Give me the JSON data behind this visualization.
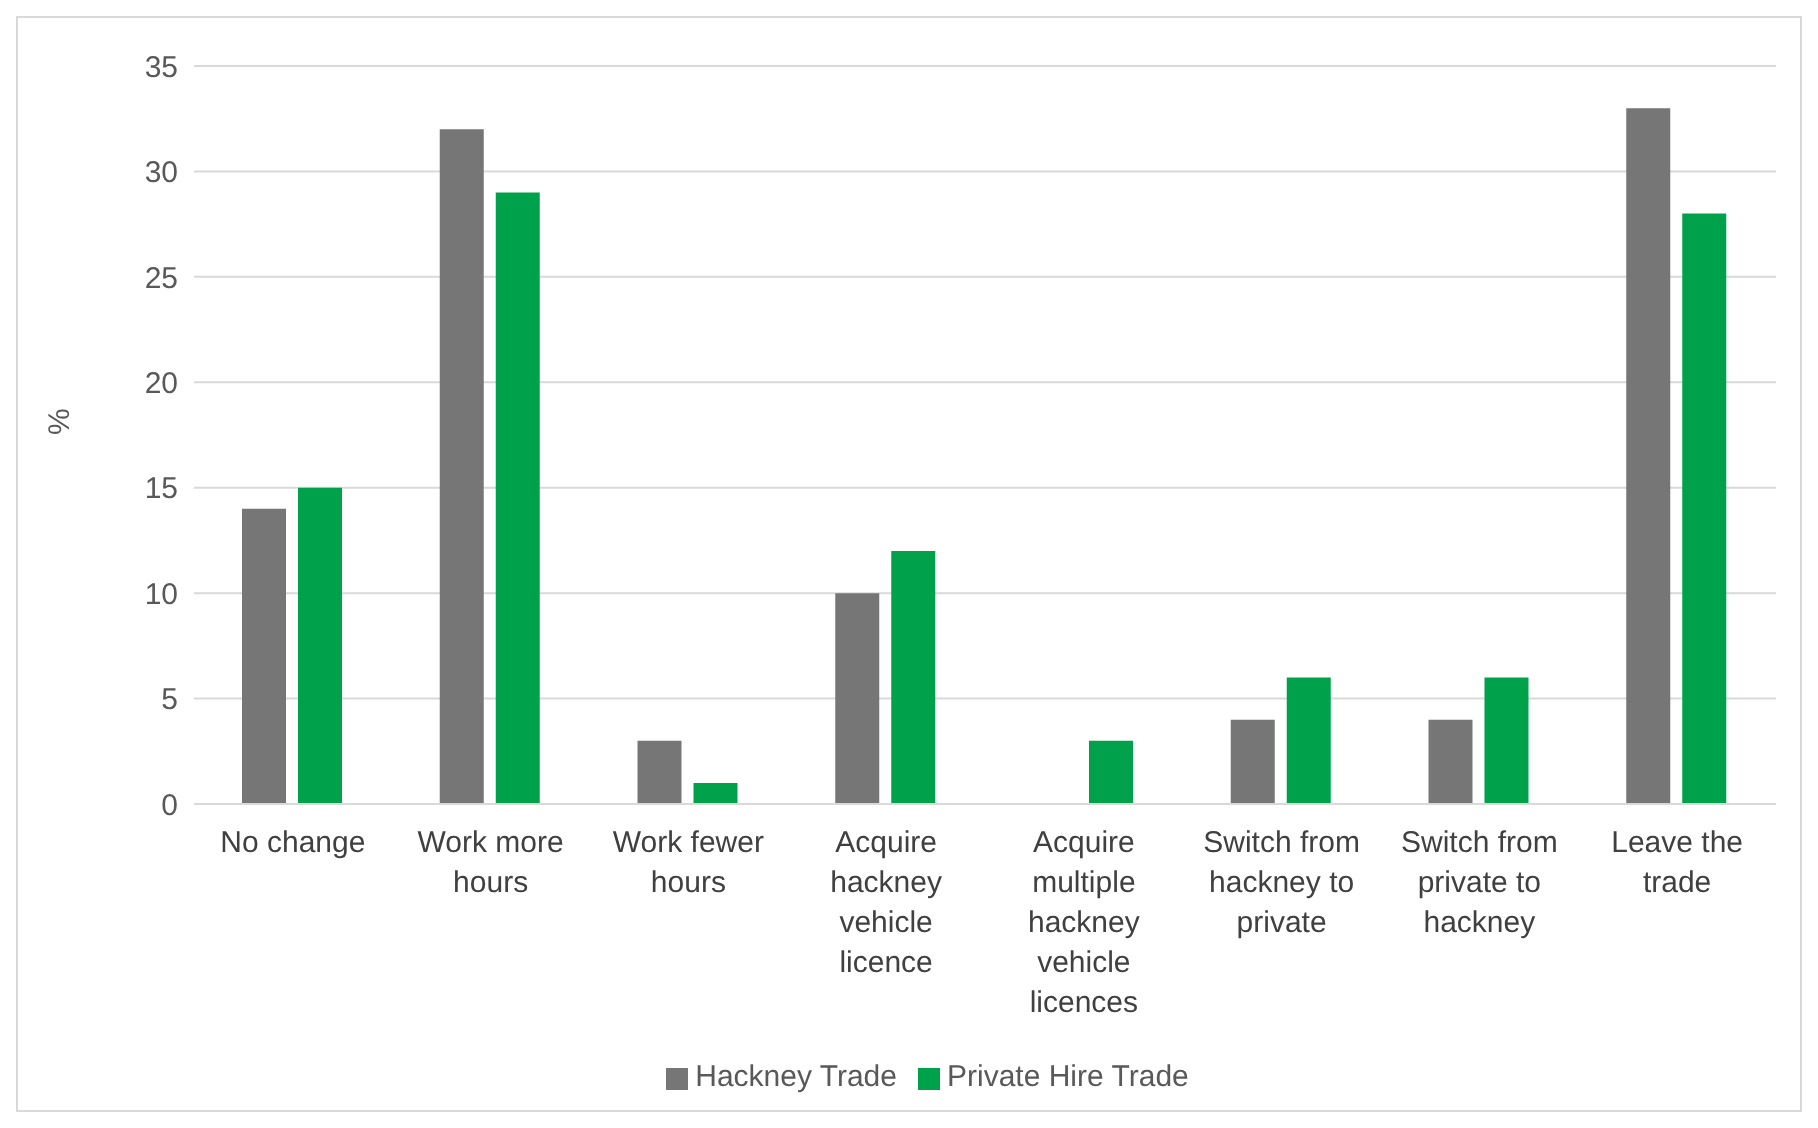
{
  "chart_data": {
    "type": "bar",
    "ylabel": "%",
    "categories": [
      "No change",
      "Work more hours",
      "Work fewer hours",
      "Acquire hackney vehicle licence",
      "Acquire multiple hackney vehicle licences",
      "Switch from hackney to private",
      "Switch from private to hackney",
      "Leave the trade"
    ],
    "series": [
      {
        "name": "Hackney Trade",
        "color": "#767676",
        "values": [
          14,
          32,
          3,
          10,
          0,
          4,
          4,
          33
        ]
      },
      {
        "name": "Private Hire Trade",
        "color": "#00a14b",
        "values": [
          15,
          29,
          1,
          12,
          3,
          6,
          6,
          28
        ]
      }
    ],
    "ylim": [
      0,
      35
    ],
    "yticks": [
      0,
      5,
      10,
      15,
      20,
      25,
      30,
      35
    ],
    "grid": "y",
    "legend": "bottom"
  }
}
